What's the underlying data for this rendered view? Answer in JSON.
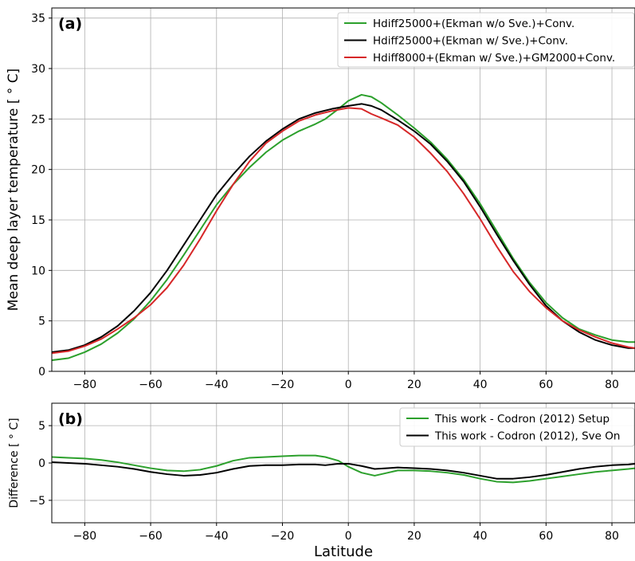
{
  "chart_data": [
    {
      "type": "line",
      "panel_tag": "(a)",
      "xlabel": "",
      "ylabel": "Mean deep layer temperature [$^\\circ$C]",
      "ylabel_display": "Mean deep layer temperature [ ° C]",
      "xlim": [
        -90,
        87
      ],
      "ylim": [
        0,
        36
      ],
      "xticks": [
        -80,
        -60,
        -40,
        -20,
        0,
        20,
        40,
        60,
        80
      ],
      "xtick_labels": [
        "−80",
        "−60",
        "−40",
        "−20",
        "0",
        "20",
        "40",
        "60",
        "80"
      ],
      "yticks": [
        0,
        5,
        10,
        15,
        20,
        25,
        30,
        35
      ],
      "ytick_labels": [
        "0",
        "5",
        "10",
        "15",
        "20",
        "25",
        "30",
        "35"
      ],
      "grid": true,
      "legend_position": "top-right",
      "series": [
        {
          "name": "Hdiff25000+(Ekman w/o Sve.)+Conv.",
          "color": "#2ca02c",
          "x": [
            -90,
            -85,
            -80,
            -75,
            -70,
            -65,
            -60,
            -55,
            -50,
            -45,
            -40,
            -35,
            -30,
            -25,
            -20,
            -15,
            -10,
            -7,
            -3,
            0,
            4,
            7,
            10,
            15,
            20,
            25,
            30,
            35,
            40,
            45,
            50,
            55,
            60,
            65,
            70,
            75,
            80,
            85,
            87
          ],
          "y": [
            1.1,
            1.3,
            1.9,
            2.7,
            3.8,
            5.2,
            7.0,
            9.1,
            11.5,
            14.0,
            16.5,
            18.5,
            20.2,
            21.7,
            22.9,
            23.8,
            24.5,
            25.0,
            26.0,
            26.8,
            27.4,
            27.2,
            26.6,
            25.4,
            24.1,
            22.7,
            21.0,
            19.0,
            16.6,
            13.9,
            11.2,
            8.8,
            6.8,
            5.3,
            4.2,
            3.6,
            3.1,
            2.9,
            2.9
          ]
        },
        {
          "name": "Hdiff25000+(Ekman w/ Sve.)+Conv.",
          "color": "#000000",
          "x": [
            -90,
            -85,
            -80,
            -75,
            -70,
            -65,
            -60,
            -55,
            -50,
            -45,
            -40,
            -35,
            -30,
            -25,
            -20,
            -15,
            -10,
            -5,
            0,
            4,
            7,
            10,
            15,
            20,
            25,
            30,
            35,
            40,
            45,
            50,
            55,
            60,
            65,
            70,
            75,
            80,
            85,
            87
          ],
          "y": [
            1.9,
            2.1,
            2.6,
            3.4,
            4.5,
            6.0,
            7.8,
            10.0,
            12.5,
            15.0,
            17.5,
            19.5,
            21.3,
            22.8,
            24.0,
            25.0,
            25.6,
            26.0,
            26.3,
            26.5,
            26.3,
            25.9,
            24.9,
            23.8,
            22.5,
            20.8,
            18.8,
            16.3,
            13.6,
            11.0,
            8.6,
            6.5,
            5.0,
            3.9,
            3.1,
            2.6,
            2.3,
            2.3
          ]
        },
        {
          "name": "Hdiff8000+(Ekman w/ Sve.)+GM2000+Conv.",
          "color": "#d62728",
          "x": [
            -90,
            -85,
            -80,
            -75,
            -70,
            -65,
            -60,
            -55,
            -50,
            -45,
            -40,
            -35,
            -30,
            -25,
            -20,
            -15,
            -10,
            -5,
            0,
            4,
            7,
            10,
            15,
            20,
            25,
            30,
            35,
            40,
            45,
            50,
            55,
            60,
            65,
            70,
            75,
            80,
            85,
            87
          ],
          "y": [
            1.8,
            2.0,
            2.5,
            3.2,
            4.2,
            5.3,
            6.6,
            8.3,
            10.5,
            13.1,
            15.9,
            18.5,
            20.8,
            22.6,
            23.8,
            24.8,
            25.4,
            25.8,
            26.1,
            26.0,
            25.5,
            25.1,
            24.4,
            23.2,
            21.6,
            19.8,
            17.6,
            15.1,
            12.4,
            9.9,
            7.9,
            6.3,
            5.0,
            4.1,
            3.4,
            2.8,
            2.4,
            2.3
          ]
        }
      ]
    },
    {
      "type": "line",
      "panel_tag": "(b)",
      "xlabel": "Latitude",
      "ylabel": "Difference [$^\\circ$C]",
      "ylabel_display": "Difference [ ° C]",
      "xlim": [
        -90,
        87
      ],
      "ylim": [
        -8,
        8
      ],
      "xticks": [
        -80,
        -60,
        -40,
        -20,
        0,
        20,
        40,
        60,
        80
      ],
      "xtick_labels": [
        "−80",
        "−60",
        "−40",
        "−20",
        "0",
        "20",
        "40",
        "60",
        "80"
      ],
      "yticks": [
        -5,
        0,
        5
      ],
      "ytick_labels": [
        "−5",
        "0",
        "5"
      ],
      "grid": true,
      "legend_position": "top-right",
      "series": [
        {
          "name": "This work - Codron (2012) Setup",
          "color": "#2ca02c",
          "x": [
            -90,
            -85,
            -80,
            -75,
            -70,
            -65,
            -60,
            -55,
            -50,
            -45,
            -40,
            -35,
            -30,
            -25,
            -20,
            -15,
            -10,
            -7,
            -3,
            0,
            4,
            8,
            12,
            15,
            20,
            25,
            30,
            35,
            40,
            45,
            50,
            55,
            60,
            65,
            70,
            75,
            80,
            85,
            87
          ],
          "y": [
            0.8,
            0.7,
            0.6,
            0.4,
            0.1,
            -0.3,
            -0.7,
            -1.0,
            -1.1,
            -0.9,
            -0.4,
            0.3,
            0.7,
            0.8,
            0.9,
            1.0,
            1.0,
            0.8,
            0.3,
            -0.5,
            -1.3,
            -1.7,
            -1.3,
            -1.0,
            -1.0,
            -1.1,
            -1.3,
            -1.6,
            -2.1,
            -2.5,
            -2.6,
            -2.4,
            -2.1,
            -1.8,
            -1.5,
            -1.2,
            -1.0,
            -0.8,
            -0.7
          ]
        },
        {
          "name": "This work - Codron (2012), Sve On",
          "color": "#000000",
          "x": [
            -90,
            -85,
            -80,
            -75,
            -70,
            -65,
            -60,
            -55,
            -50,
            -45,
            -40,
            -35,
            -30,
            -25,
            -20,
            -15,
            -10,
            -7,
            -3,
            0,
            4,
            8,
            12,
            15,
            20,
            25,
            30,
            35,
            40,
            45,
            50,
            55,
            60,
            65,
            70,
            75,
            80,
            85,
            87
          ],
          "y": [
            0.1,
            0.0,
            -0.1,
            -0.3,
            -0.5,
            -0.8,
            -1.2,
            -1.5,
            -1.7,
            -1.6,
            -1.3,
            -0.8,
            -0.4,
            -0.3,
            -0.3,
            -0.2,
            -0.2,
            -0.3,
            -0.1,
            -0.1,
            -0.4,
            -0.8,
            -0.7,
            -0.6,
            -0.7,
            -0.8,
            -1.0,
            -1.3,
            -1.7,
            -2.1,
            -2.1,
            -1.9,
            -1.6,
            -1.2,
            -0.8,
            -0.5,
            -0.3,
            -0.2,
            -0.1
          ]
        }
      ]
    }
  ]
}
